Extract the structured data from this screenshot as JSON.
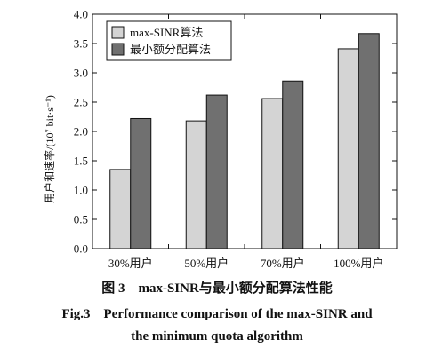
{
  "chart_data": {
    "type": "bar",
    "categories": [
      "30%用户",
      "50%用户",
      "70%用户",
      "100%用户"
    ],
    "series": [
      {
        "name": "max-SINR算法",
        "values": [
          1.35,
          2.18,
          2.56,
          3.41
        ],
        "color": "#d4d4d4"
      },
      {
        "name": "最小额分配算法",
        "values": [
          2.22,
          2.62,
          2.86,
          3.67
        ],
        "color": "#707070"
      }
    ],
    "ylabel": "用户和速率/(10⁷ bit·s⁻¹)",
    "ylim": [
      0,
      4.0
    ],
    "yticks": [
      "0.0",
      "0.5",
      "1.0",
      "1.5",
      "2.0",
      "2.5",
      "3.0",
      "3.5",
      "4.0"
    ],
    "legend_position": "top-left",
    "grid": false
  },
  "caption": {
    "cn": "图 3　max-SINR与最小额分配算法性能",
    "en_line1": "Fig.3　Performance comparison of the max-SINR and",
    "en_line2": "the minimum quota algorithm"
  }
}
